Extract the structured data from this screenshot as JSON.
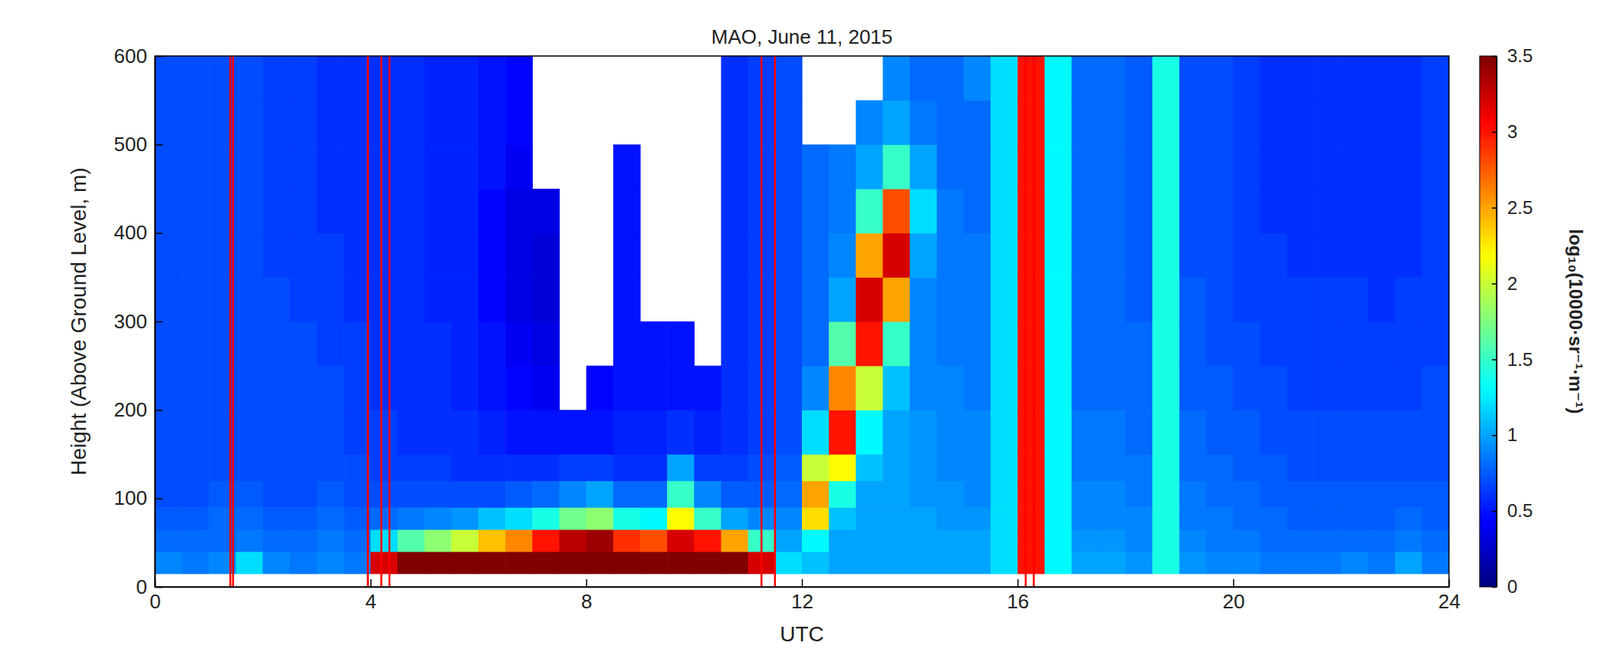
{
  "chart_data": {
    "type": "heatmap",
    "title": "MAO, June 11, 2015",
    "x_label": "UTC",
    "y_label": "Height (Above Ground Level, m)",
    "xlim": [
      0,
      24
    ],
    "xticks": [
      0,
      4,
      8,
      12,
      16,
      20,
      24
    ],
    "ylim": [
      0,
      600
    ],
    "yticks": [
      0,
      100,
      200,
      300,
      400,
      500,
      600
    ],
    "colorbar_label": "log₁₀(10000·sr⁻¹·m⁻¹)",
    "colorbar_range": [
      0,
      3.5
    ],
    "colorbar_ticks": [
      0,
      0.5,
      1,
      1.5,
      2,
      2.5,
      3,
      3.5
    ],
    "x_bins": [
      0,
      0.5,
      1,
      1.5,
      2,
      2.5,
      3,
      3.5,
      4,
      4.5,
      5,
      5.5,
      6,
      6.5,
      7,
      7.5,
      8,
      8.5,
      9,
      9.5,
      10,
      10.5,
      11,
      11.5,
      12,
      12.5,
      13,
      13.5,
      14,
      14.5,
      15,
      15.5,
      16,
      16.5,
      17,
      17.5,
      18,
      18.5,
      19,
      19.5,
      20,
      20.5,
      21,
      21.5,
      22,
      22.5,
      23,
      23.5,
      24
    ],
    "y_bins": [
      15,
      40,
      65,
      90,
      120,
      150,
      200,
      250,
      300,
      350,
      400,
      450,
      500,
      550,
      600
    ],
    "z": [
      [
        0.9,
        0.8,
        0.75,
        0.7,
        0.7,
        0.7,
        0.7,
        0.7,
        0.7,
        0.7,
        0.7,
        0.7,
        0.7,
        0.7
      ],
      [
        0.85,
        0.8,
        0.75,
        0.7,
        0.7,
        0.7,
        0.7,
        0.7,
        0.7,
        0.7,
        0.7,
        0.7,
        0.7,
        0.7
      ],
      [
        0.9,
        0.8,
        0.8,
        0.75,
        0.7,
        0.7,
        0.7,
        0.7,
        0.7,
        0.7,
        0.7,
        0.7,
        0.7,
        0.7
      ],
      [
        1.2,
        0.85,
        0.8,
        0.75,
        0.7,
        0.7,
        0.7,
        0.7,
        0.7,
        0.7,
        0.7,
        0.7,
        0.7,
        0.7
      ],
      [
        0.9,
        0.8,
        0.75,
        0.7,
        0.7,
        0.7,
        0.7,
        0.7,
        0.7,
        0.65,
        0.65,
        0.65,
        0.65,
        0.65
      ],
      [
        0.85,
        0.8,
        0.75,
        0.7,
        0.7,
        0.7,
        0.7,
        0.7,
        0.65,
        0.65,
        0.65,
        0.65,
        0.65,
        0.65
      ],
      [
        0.9,
        0.85,
        0.8,
        0.75,
        0.7,
        0.7,
        0.7,
        0.65,
        0.65,
        0.65,
        0.6,
        0.6,
        0.6,
        0.6
      ],
      [
        0.85,
        0.8,
        0.75,
        0.7,
        0.7,
        0.65,
        0.65,
        0.65,
        0.6,
        0.6,
        0.6,
        0.6,
        0.6,
        0.6
      ],
      [
        3.2,
        1.2,
        0.8,
        0.7,
        0.65,
        0.65,
        0.6,
        0.6,
        0.6,
        0.6,
        0.6,
        0.6,
        0.6,
        0.6
      ],
      [
        3.5,
        1.6,
        0.85,
        0.7,
        0.65,
        0.6,
        0.6,
        0.6,
        0.6,
        0.6,
        0.6,
        0.6,
        0.6,
        0.6
      ],
      [
        3.5,
        1.8,
        0.9,
        0.7,
        0.65,
        0.6,
        0.6,
        0.6,
        0.55,
        0.55,
        0.55,
        0.55,
        0.55,
        0.55
      ],
      [
        3.5,
        2.0,
        0.95,
        0.7,
        0.6,
        0.6,
        0.55,
        0.55,
        0.55,
        0.55,
        0.55,
        0.55,
        0.55,
        0.55
      ],
      [
        3.5,
        2.4,
        1.1,
        0.7,
        0.6,
        0.55,
        0.5,
        0.5,
        0.45,
        0.45,
        0.45,
        0.5,
        0.5,
        0.5
      ],
      [
        3.5,
        2.6,
        1.2,
        0.75,
        0.6,
        0.5,
        0.45,
        0.4,
        0.35,
        0.35,
        0.35,
        0.4,
        0.45,
        0.45
      ],
      [
        3.5,
        3.0,
        1.4,
        0.8,
        0.6,
        0.5,
        0.4,
        0.35,
        0.3,
        0.3,
        0.35,
        null,
        null,
        null
      ],
      [
        3.5,
        3.3,
        1.7,
        0.9,
        0.65,
        0.5,
        null,
        null,
        null,
        null,
        null,
        null,
        null,
        null
      ],
      [
        3.5,
        3.4,
        1.8,
        1.0,
        0.65,
        0.5,
        0.45,
        null,
        null,
        null,
        null,
        null,
        null,
        null
      ],
      [
        3.5,
        2.9,
        1.4,
        0.8,
        0.6,
        0.55,
        0.5,
        0.5,
        0.5,
        0.5,
        0.5,
        0.5,
        null,
        null
      ],
      [
        3.5,
        2.8,
        1.3,
        0.8,
        0.6,
        0.55,
        0.5,
        0.5,
        null,
        null,
        null,
        null,
        null,
        null
      ],
      [
        3.5,
        3.2,
        2.2,
        1.5,
        1.0,
        0.6,
        0.5,
        0.5,
        null,
        null,
        null,
        null,
        null,
        null
      ],
      [
        3.5,
        3.0,
        1.5,
        0.9,
        0.65,
        0.55,
        0.5,
        null,
        null,
        null,
        null,
        null,
        null,
        null
      ],
      [
        3.5,
        2.5,
        1.0,
        0.75,
        0.65,
        0.6,
        0.6,
        0.6,
        0.6,
        0.6,
        0.6,
        0.6,
        0.6,
        0.6
      ],
      [
        3.2,
        1.5,
        0.9,
        0.75,
        0.7,
        0.65,
        0.65,
        0.65,
        0.65,
        0.65,
        0.65,
        0.65,
        0.65,
        0.65
      ],
      [
        1.2,
        1.0,
        0.9,
        0.8,
        0.75,
        0.7,
        0.7,
        0.7,
        0.7,
        0.7,
        0.7,
        0.7,
        0.7,
        0.7
      ],
      [
        1.1,
        1.3,
        2.3,
        2.5,
        2.0,
        1.2,
        0.9,
        0.8,
        0.8,
        0.8,
        0.8,
        0.8,
        null,
        null
      ],
      [
        1.0,
        1.0,
        1.1,
        1.4,
        2.2,
        3.0,
        2.6,
        1.6,
        1.0,
        0.9,
        0.85,
        0.85,
        null,
        null
      ],
      [
        1.0,
        1.0,
        1.0,
        1.0,
        1.1,
        1.3,
        2.0,
        3.0,
        3.2,
        2.5,
        1.5,
        1.0,
        0.9,
        null
      ],
      [
        1.0,
        1.0,
        1.0,
        1.0,
        1.0,
        1.0,
        1.1,
        1.5,
        2.5,
        3.2,
        2.8,
        1.5,
        1.0,
        0.9
      ],
      [
        1.0,
        1.0,
        1.0,
        0.95,
        0.95,
        0.95,
        0.9,
        0.9,
        0.9,
        1.0,
        1.2,
        1.0,
        0.85,
        0.8
      ],
      [
        1.0,
        1.0,
        0.95,
        0.95,
        0.9,
        0.9,
        0.9,
        0.85,
        0.85,
        0.85,
        0.85,
        0.8,
        0.8,
        0.8
      ],
      [
        1.0,
        1.0,
        0.95,
        0.9,
        0.9,
        0.9,
        0.85,
        0.85,
        0.85,
        0.85,
        0.8,
        0.8,
        0.8,
        0.9
      ],
      [
        1.2,
        1.2,
        1.2,
        1.2,
        1.2,
        1.2,
        1.2,
        1.2,
        1.2,
        1.2,
        1.2,
        1.2,
        1.2,
        1.2
      ],
      [
        3.0,
        3.0,
        3.0,
        3.0,
        3.0,
        3.0,
        3.0,
        3.0,
        3.0,
        3.0,
        3.0,
        3.0,
        3.0,
        3.0
      ],
      [
        1.3,
        1.3,
        1.3,
        1.3,
        1.3,
        1.3,
        1.3,
        1.3,
        1.3,
        1.3,
        1.3,
        1.3,
        1.3,
        1.3
      ],
      [
        1.0,
        0.95,
        0.9,
        0.9,
        0.85,
        0.85,
        0.8,
        0.8,
        0.8,
        0.8,
        0.8,
        0.8,
        0.8,
        0.8
      ],
      [
        1.0,
        0.95,
        0.9,
        0.9,
        0.85,
        0.85,
        0.8,
        0.8,
        0.8,
        0.8,
        0.8,
        0.8,
        0.8,
        0.8
      ],
      [
        0.95,
        0.9,
        0.9,
        0.85,
        0.85,
        0.8,
        0.8,
        0.8,
        0.75,
        0.75,
        0.75,
        0.75,
        0.75,
        0.75
      ],
      [
        1.4,
        1.4,
        1.4,
        1.4,
        1.4,
        1.4,
        1.4,
        1.4,
        1.4,
        1.4,
        1.4,
        1.4,
        1.4,
        1.4
      ],
      [
        0.95,
        0.9,
        0.85,
        0.85,
        0.8,
        0.8,
        0.75,
        0.75,
        0.75,
        0.7,
        0.7,
        0.7,
        0.7,
        0.7
      ],
      [
        0.9,
        0.85,
        0.85,
        0.8,
        0.8,
        0.75,
        0.75,
        0.7,
        0.7,
        0.7,
        0.7,
        0.7,
        0.7,
        0.7
      ],
      [
        0.9,
        0.85,
        0.8,
        0.8,
        0.75,
        0.75,
        0.7,
        0.7,
        0.65,
        0.65,
        0.65,
        0.65,
        0.65,
        0.65
      ],
      [
        0.85,
        0.8,
        0.8,
        0.75,
        0.75,
        0.7,
        0.7,
        0.65,
        0.65,
        0.65,
        0.6,
        0.6,
        0.6,
        0.6
      ],
      [
        0.85,
        0.8,
        0.75,
        0.75,
        0.7,
        0.7,
        0.65,
        0.65,
        0.65,
        0.6,
        0.6,
        0.6,
        0.6,
        0.6
      ],
      [
        0.85,
        0.8,
        0.75,
        0.75,
        0.7,
        0.7,
        0.65,
        0.65,
        0.65,
        0.6,
        0.6,
        0.6,
        0.6,
        0.6
      ],
      [
        0.9,
        0.8,
        0.75,
        0.75,
        0.7,
        0.7,
        0.65,
        0.65,
        0.65,
        0.6,
        0.6,
        0.6,
        0.6,
        0.6
      ],
      [
        0.85,
        0.8,
        0.75,
        0.75,
        0.7,
        0.7,
        0.65,
        0.65,
        0.6,
        0.6,
        0.6,
        0.6,
        0.6,
        0.6
      ],
      [
        1.0,
        0.85,
        0.8,
        0.75,
        0.7,
        0.7,
        0.65,
        0.65,
        0.65,
        0.6,
        0.6,
        0.6,
        0.6,
        0.6
      ],
      [
        0.85,
        0.8,
        0.75,
        0.75,
        0.7,
        0.7,
        0.7,
        0.65,
        0.65,
        0.65,
        0.65,
        0.65,
        0.65,
        0.65
      ]
    ],
    "vertical_lines": [
      1.4,
      1.45,
      3.95,
      4.2,
      4.35,
      11.25,
      11.5,
      16.15,
      16.3
    ],
    "color": "#ff0000"
  }
}
